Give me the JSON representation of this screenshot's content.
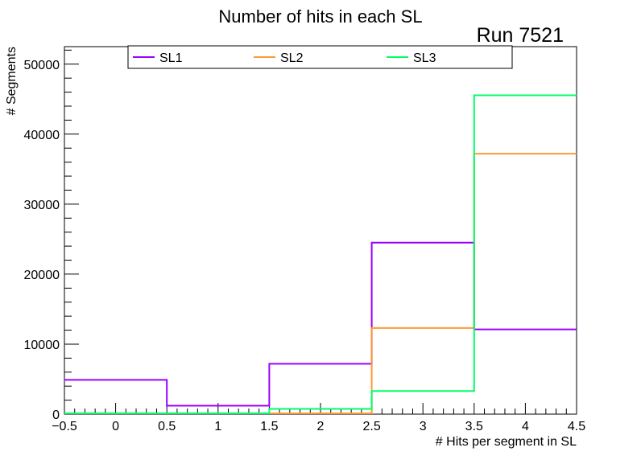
{
  "chart_data": {
    "type": "step-histogram",
    "title": "Number of hits in each SL",
    "annotation": "Run 7521",
    "xlabel": "# Hits per segment in SL",
    "ylabel": "# Segments",
    "xlim": [
      -0.5,
      4.5
    ],
    "ylim": [
      0,
      52500
    ],
    "bin_edges": [
      -0.5,
      0.5,
      1.5,
      2.5,
      3.5,
      4.5
    ],
    "x_ticks": [
      "-0.5",
      "0",
      "0.5",
      "1",
      "1.5",
      "2",
      "2.5",
      "3",
      "3.5",
      "4",
      "4.5"
    ],
    "y_ticks": [
      "0",
      "10000",
      "20000",
      "30000",
      "40000",
      "50000"
    ],
    "legend_position": "top",
    "series": [
      {
        "name": "SL1",
        "color": "#9b00ff",
        "values": [
          4900,
          1200,
          7200,
          24500,
          12100
        ]
      },
      {
        "name": "SL2",
        "color": "#ff9933",
        "values": [
          0,
          0,
          0,
          12300,
          37200
        ]
      },
      {
        "name": "SL3",
        "color": "#00ff66",
        "values": [
          0,
          0,
          750,
          3300,
          45550
        ]
      }
    ]
  }
}
